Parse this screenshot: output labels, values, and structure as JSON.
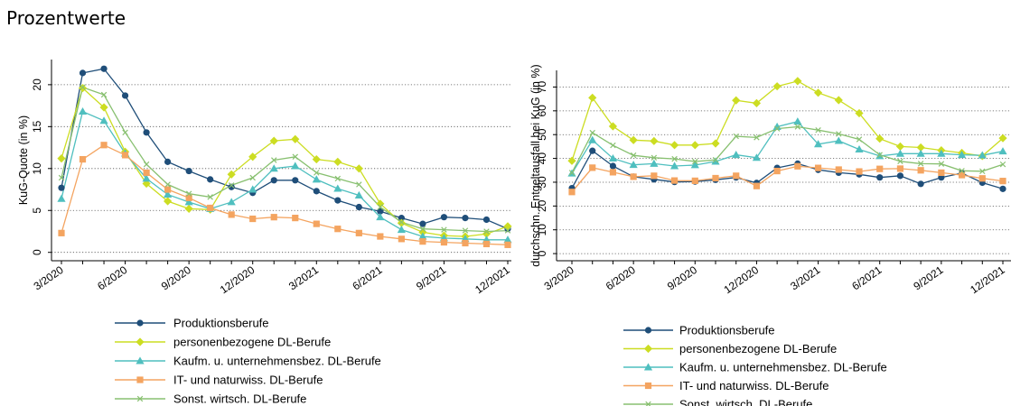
{
  "page_title": "Prozentwerte",
  "colors": {
    "Produktionsberufe": "#1f4e79",
    "personenbezogene DL-Berufe": "#ccdd22",
    "Kaufm. u. unternehmensbez. DL-Berufe": "#4fbfbf",
    "IT- und naturwiss. DL-Berufe": "#f4a460",
    "Sonst. wirtsch. DL-Berufe": "#88c070"
  },
  "chart_data": [
    {
      "type": "line",
      "title": "",
      "xlabel": "",
      "ylabel": "KuG-Quote (in %)",
      "x": [
        "3/2020",
        "4/2020",
        "5/2020",
        "6/2020",
        "7/2020",
        "8/2020",
        "9/2020",
        "10/2020",
        "11/2020",
        "12/2020",
        "1/2021",
        "2/2021",
        "3/2021",
        "4/2021",
        "5/2021",
        "6/2021",
        "7/2021",
        "8/2021",
        "9/2021",
        "10/2021",
        "11/2021",
        "12/2021"
      ],
      "xtick_labels": [
        "3/2020",
        "6/2020",
        "9/2020",
        "12/2020",
        "3/2021",
        "6/2021",
        "9/2021",
        "12/2021"
      ],
      "yticks": [
        0,
        5,
        10,
        15,
        20
      ],
      "ylim": [
        -1,
        23
      ],
      "grid": true,
      "legend_position": "bottom",
      "series": [
        {
          "name": "Produktionsberufe",
          "marker": "circle",
          "values": [
            7.7,
            21.4,
            21.9,
            18.7,
            14.3,
            10.8,
            9.7,
            8.7,
            7.8,
            7.1,
            8.6,
            8.6,
            7.3,
            6.2,
            5.4,
            4.9,
            4.1,
            3.4,
            4.2,
            4.1,
            3.9,
            2.8
          ]
        },
        {
          "name": "personenbezogene DL-Berufe",
          "marker": "diamond",
          "values": [
            11.2,
            19.6,
            17.3,
            12.0,
            8.2,
            6.1,
            5.2,
            5.1,
            9.3,
            11.4,
            13.3,
            13.5,
            11.1,
            10.8,
            10.0,
            5.8,
            3.5,
            2.4,
            2.0,
            1.9,
            2.2,
            3.1
          ]
        },
        {
          "name": "Kaufm. u. unternehmensbez. DL-Berufe",
          "marker": "triangle",
          "values": [
            6.4,
            16.8,
            15.7,
            11.8,
            8.8,
            6.9,
            6.0,
            5.2,
            6.0,
            7.5,
            10.0,
            10.3,
            8.7,
            7.6,
            6.8,
            4.2,
            2.7,
            1.9,
            1.7,
            1.6,
            1.5,
            1.5
          ]
        },
        {
          "name": "IT- und naturwiss. DL-Berufe",
          "marker": "square",
          "values": [
            2.3,
            11.1,
            12.8,
            11.6,
            9.5,
            7.5,
            6.5,
            5.3,
            4.5,
            4.0,
            4.2,
            4.1,
            3.4,
            2.8,
            2.3,
            1.9,
            1.6,
            1.3,
            1.2,
            1.1,
            1.0,
            0.9
          ]
        },
        {
          "name": "Sonst. wirtsch. DL-Berufe",
          "marker": "x",
          "values": [
            8.9,
            19.7,
            18.8,
            14.3,
            10.5,
            8.1,
            7.0,
            6.6,
            8.0,
            8.9,
            11.0,
            11.4,
            9.5,
            8.8,
            8.1,
            5.4,
            3.6,
            2.8,
            2.7,
            2.6,
            2.5,
            2.6
          ]
        }
      ]
    },
    {
      "type": "line",
      "title": "",
      "xlabel": "",
      "ylabel": "durchschn. Entgeltausfall bei KuG (in %)",
      "x": [
        "3/2020",
        "4/2020",
        "5/2020",
        "6/2020",
        "7/2020",
        "8/2020",
        "9/2020",
        "10/2020",
        "11/2020",
        "12/2020",
        "1/2021",
        "2/2021",
        "3/2021",
        "4/2021",
        "5/2021",
        "6/2021",
        "7/2021",
        "8/2021",
        "9/2021",
        "10/2021",
        "11/2021",
        "12/2021"
      ],
      "xtick_labels": [
        "3/2020",
        "6/2020",
        "9/2020",
        "12/2020",
        "3/2021",
        "6/2021",
        "9/2021",
        "12/2021"
      ],
      "yticks": [
        0,
        10,
        20,
        30,
        40,
        50,
        60,
        70
      ],
      "ylim": [
        -3,
        77
      ],
      "grid": true,
      "legend_position": "bottom",
      "series": [
        {
          "name": "Produktionsberufe",
          "marker": "circle",
          "values": [
            27.5,
            43.2,
            36.8,
            32.3,
            31.2,
            30.1,
            30.3,
            31.0,
            32.0,
            29.7,
            36.0,
            37.8,
            35.2,
            34.0,
            33.3,
            32.0,
            32.7,
            29.3,
            32.0,
            33.8,
            29.8,
            27.2
          ]
        },
        {
          "name": "personenbezogene DL-Berufe",
          "marker": "diamond",
          "values": [
            39.0,
            65.5,
            53.5,
            47.7,
            47.3,
            45.6,
            45.6,
            46.3,
            64.4,
            63.2,
            70.3,
            72.5,
            67.6,
            64.5,
            59.0,
            48.3,
            45.0,
            44.6,
            43.4,
            42.3,
            41.0,
            48.5
          ]
        },
        {
          "name": "Kaufm. u. unternehmensbez. DL-Berufe",
          "marker": "triangle",
          "values": [
            33.7,
            47.7,
            40.0,
            37.3,
            37.8,
            36.8,
            37.2,
            38.7,
            41.5,
            40.3,
            53.3,
            55.5,
            46.0,
            47.4,
            43.8,
            41.0,
            42.0,
            42.0,
            42.0,
            41.5,
            41.3,
            43.0
          ]
        },
        {
          "name": "IT- und naturwiss. DL-Berufe",
          "marker": "square",
          "values": [
            25.9,
            36.1,
            34.2,
            32.3,
            32.7,
            30.7,
            30.6,
            31.7,
            32.7,
            28.4,
            34.7,
            36.7,
            36.0,
            35.3,
            34.5,
            35.6,
            35.7,
            35.0,
            34.0,
            33.0,
            31.6,
            30.5
          ]
        },
        {
          "name": "Sonst. wirtsch. DL-Berufe",
          "marker": "x",
          "values": [
            34.0,
            50.8,
            45.5,
            41.3,
            40.3,
            39.8,
            38.7,
            39.4,
            49.3,
            48.8,
            52.5,
            53.3,
            51.9,
            50.3,
            48.0,
            41.5,
            38.8,
            37.8,
            37.7,
            34.8,
            34.6,
            37.5
          ]
        }
      ]
    }
  ]
}
